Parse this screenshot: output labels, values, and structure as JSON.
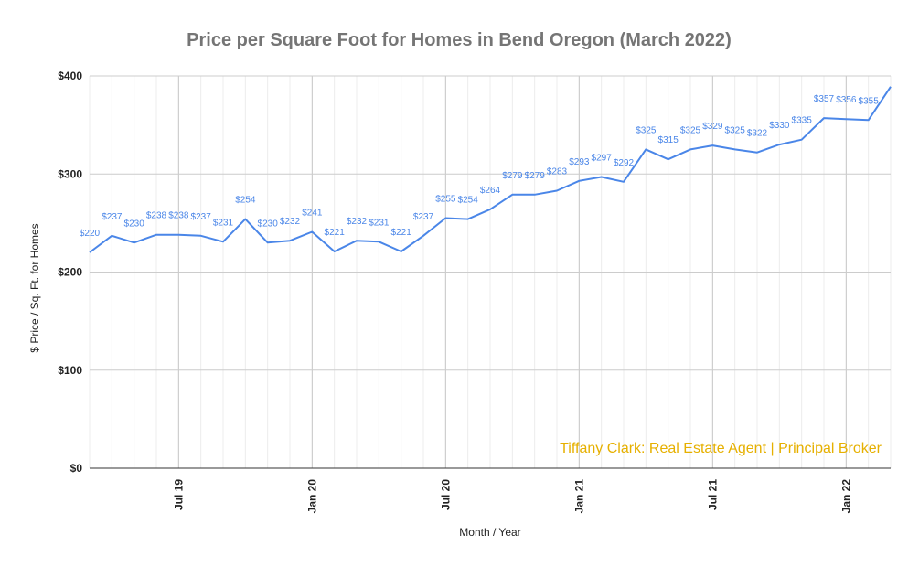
{
  "chart_data": {
    "type": "line",
    "title": "Price per Square Foot for Homes in Bend Oregon (March 2022)",
    "xlabel": "Month / Year",
    "ylabel": "$ Price / Sq. Ft. for Homes",
    "ylim": [
      0,
      400
    ],
    "yticks": [
      {
        "value": 0,
        "label": "$0"
      },
      {
        "value": 100,
        "label": "$100"
      },
      {
        "value": 200,
        "label": "$200"
      },
      {
        "value": 300,
        "label": "$300"
      },
      {
        "value": 400,
        "label": "$400"
      }
    ],
    "xticks": [
      {
        "index": 4,
        "label": "Jul 19"
      },
      {
        "index": 10,
        "label": "Jan 20"
      },
      {
        "index": 16,
        "label": "Jul 20"
      },
      {
        "index": 22,
        "label": "Jan 21"
      },
      {
        "index": 28,
        "label": "Jul 21"
      },
      {
        "index": 34,
        "label": "Jan 22"
      }
    ],
    "series": [
      {
        "name": "$ Price / Sq. Ft.",
        "color": "#4a86e8",
        "values": [
          220,
          237,
          230,
          238,
          238,
          237,
          231,
          254,
          230,
          232,
          241,
          221,
          232,
          231,
          221,
          237,
          255,
          254,
          264,
          279,
          279,
          283,
          293,
          297,
          292,
          325,
          315,
          325,
          329,
          325,
          322,
          330,
          335,
          357,
          356,
          355,
          389
        ],
        "labels": [
          "$220",
          "$237",
          "$230",
          "$238",
          "$238",
          "$237",
          "$231",
          "$254",
          "$230",
          "$232",
          "$241",
          "$221",
          "$232",
          "$231",
          "$221",
          "$237",
          "$255",
          "$254",
          "$264",
          "$279",
          "$279",
          "$283",
          "$293",
          "$297",
          "$292",
          "$325",
          "$315",
          "$325",
          "$329",
          "$325",
          "$322",
          "$330",
          "$335",
          "$357",
          "$356",
          "$355",
          ""
        ]
      }
    ],
    "grid": true,
    "legend": "none"
  },
  "watermark": "Tiffany Clark: Real Estate Agent | Principal Broker"
}
